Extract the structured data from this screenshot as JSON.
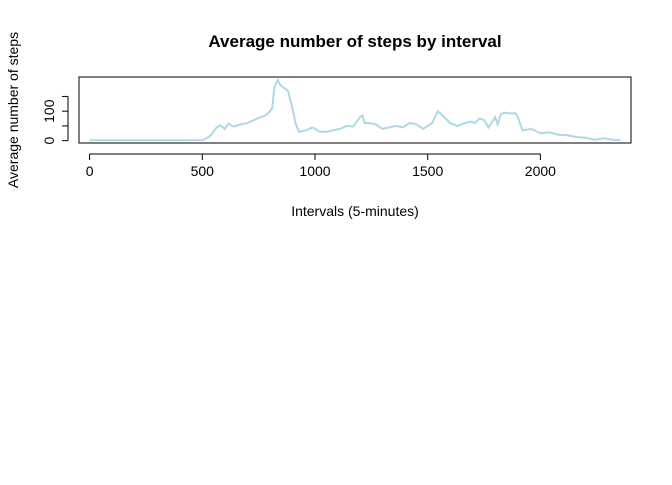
{
  "chart_data": {
    "type": "line",
    "title": "Average number of steps by interval",
    "xlabel": "Intervals (5-minutes)",
    "ylabel": "Average number of steps",
    "xlim": [
      -47,
      2402
    ],
    "ylim": [
      -8,
      216
    ],
    "x_ticks": [
      0,
      500,
      1000,
      1500,
      2000
    ],
    "y_ticks": [
      0,
      100
    ],
    "line_color": "#ADD8E6",
    "grid": false,
    "series": [
      {
        "x": [
          0,
          100,
          200,
          300,
          400,
          500,
          520,
          540,
          550,
          560,
          580,
          600,
          615,
          640,
          670,
          700,
          730,
          760,
          780,
          800,
          810,
          820,
          830,
          835,
          845,
          860,
          880,
          900,
          915,
          930,
          960,
          990,
          1020,
          1050,
          1080,
          1110,
          1140,
          1170,
          1200,
          1210,
          1220,
          1240,
          1270,
          1300,
          1330,
          1360,
          1390,
          1420,
          1450,
          1480,
          1500,
          1520,
          1545,
          1560,
          1580,
          1600,
          1630,
          1660,
          1690,
          1710,
          1730,
          1750,
          1770,
          1800,
          1810,
          1825,
          1845,
          1870,
          1890,
          1900,
          1920,
          1960,
          2000,
          2040,
          2080,
          2120,
          2160,
          2200,
          2240,
          2280,
          2320,
          2355
        ],
        "y": [
          1,
          1,
          1,
          1,
          1,
          2,
          8,
          20,
          30,
          42,
          52,
          40,
          58,
          48,
          55,
          60,
          70,
          80,
          85,
          100,
          110,
          180,
          200,
          206,
          190,
          180,
          170,
          110,
          55,
          30,
          35,
          45,
          30,
          30,
          35,
          40,
          50,
          48,
          80,
          85,
          60,
          60,
          55,
          40,
          45,
          50,
          45,
          60,
          55,
          40,
          50,
          60,
          100,
          90,
          75,
          60,
          50,
          58,
          65,
          60,
          75,
          70,
          45,
          80,
          55,
          90,
          95,
          92,
          93,
          80,
          35,
          40,
          25,
          28,
          20,
          18,
          12,
          10,
          3,
          8,
          3,
          1
        ]
      }
    ]
  }
}
